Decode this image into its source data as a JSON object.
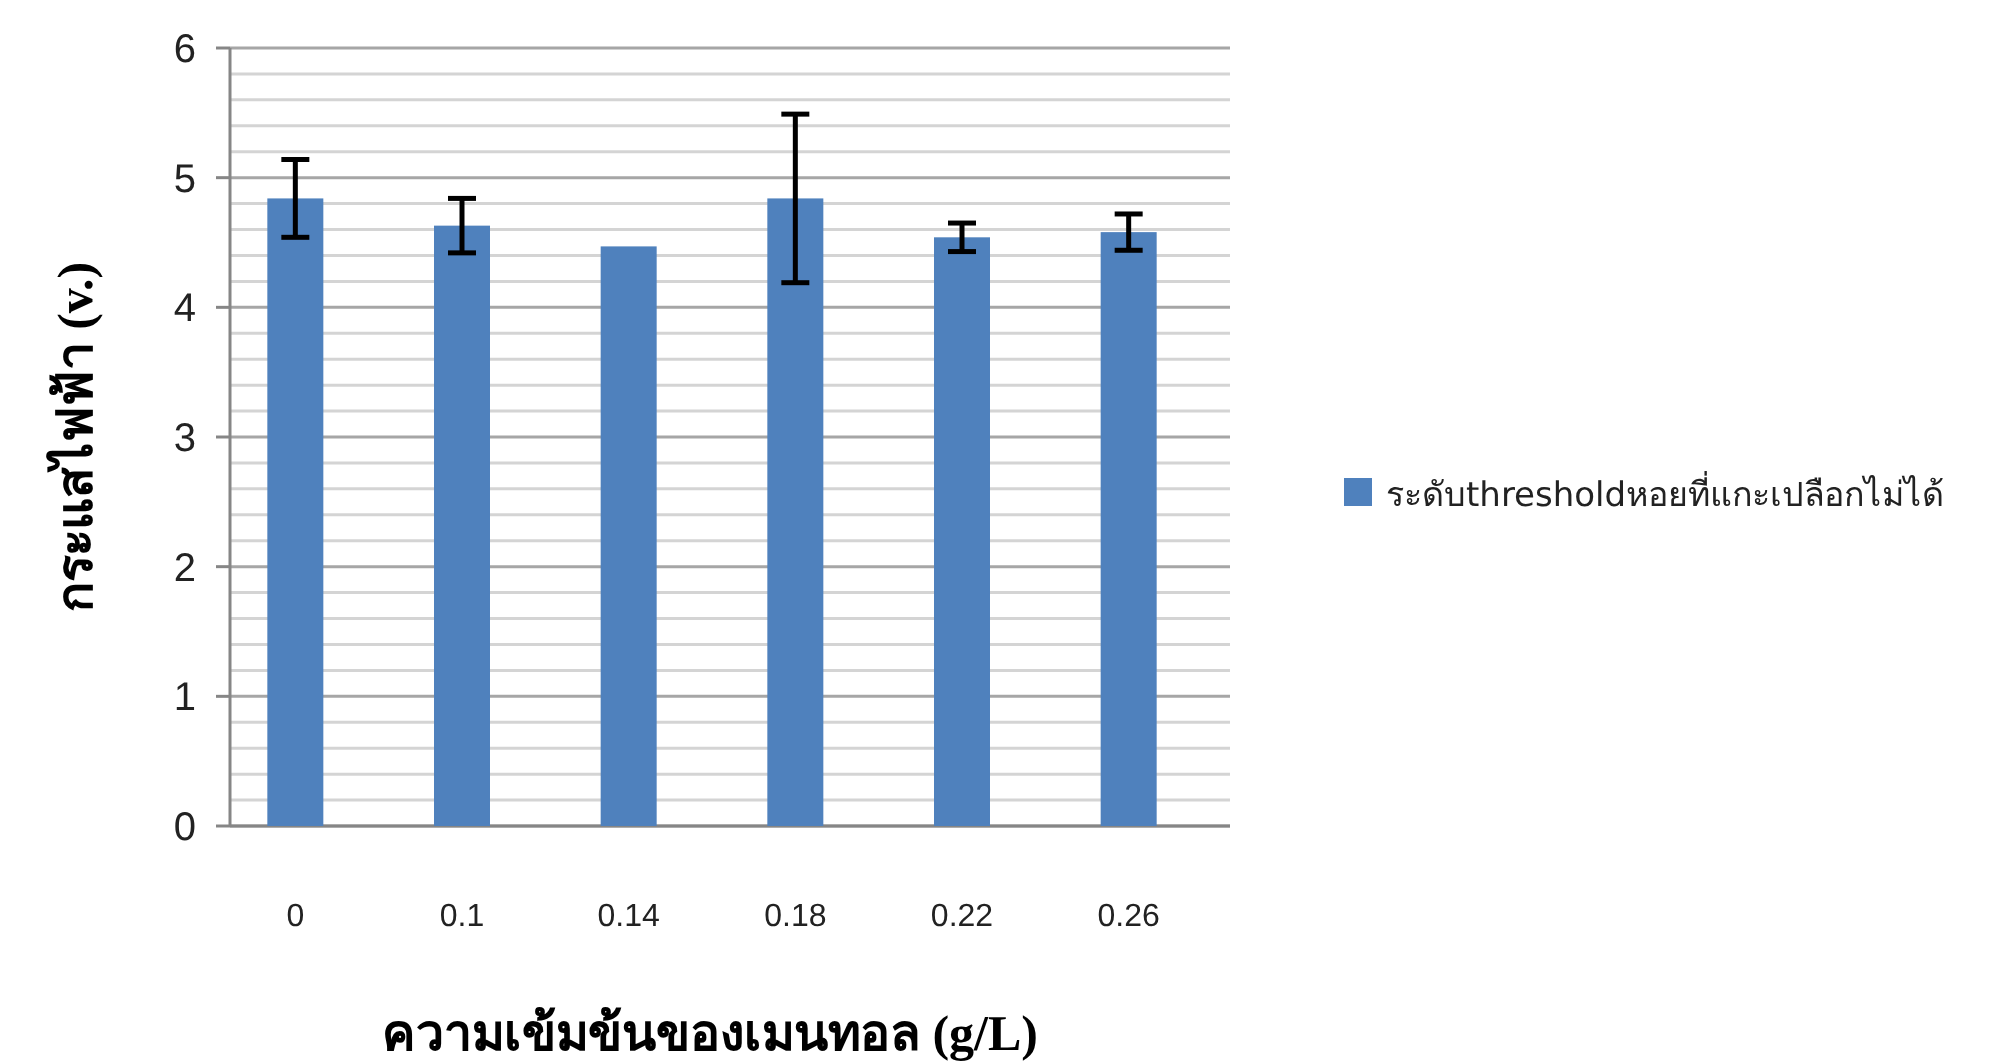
{
  "chart_data": {
    "type": "bar",
    "xlabel": "ความเข้มข้นของเมนทอล (g/L)",
    "ylabel": "กระแสไฟฟ้า (v.)",
    "categories": [
      "0",
      "0.1",
      "0.14",
      "0.18",
      "0.22",
      "0.26"
    ],
    "series": [
      {
        "name": "ระดับthresholdหอยที่แกะเปลือกไม่ได้",
        "color": "#4f81bd",
        "values": [
          4.84,
          4.63,
          4.47,
          4.84,
          4.54,
          4.58
        ],
        "errors": [
          0.3,
          0.21,
          null,
          0.65,
          0.11,
          0.14
        ]
      }
    ],
    "ylim": [
      0,
      6
    ],
    "yticks": [
      0,
      1,
      2,
      3,
      4,
      5,
      6
    ],
    "grid": true,
    "legend": "right"
  }
}
